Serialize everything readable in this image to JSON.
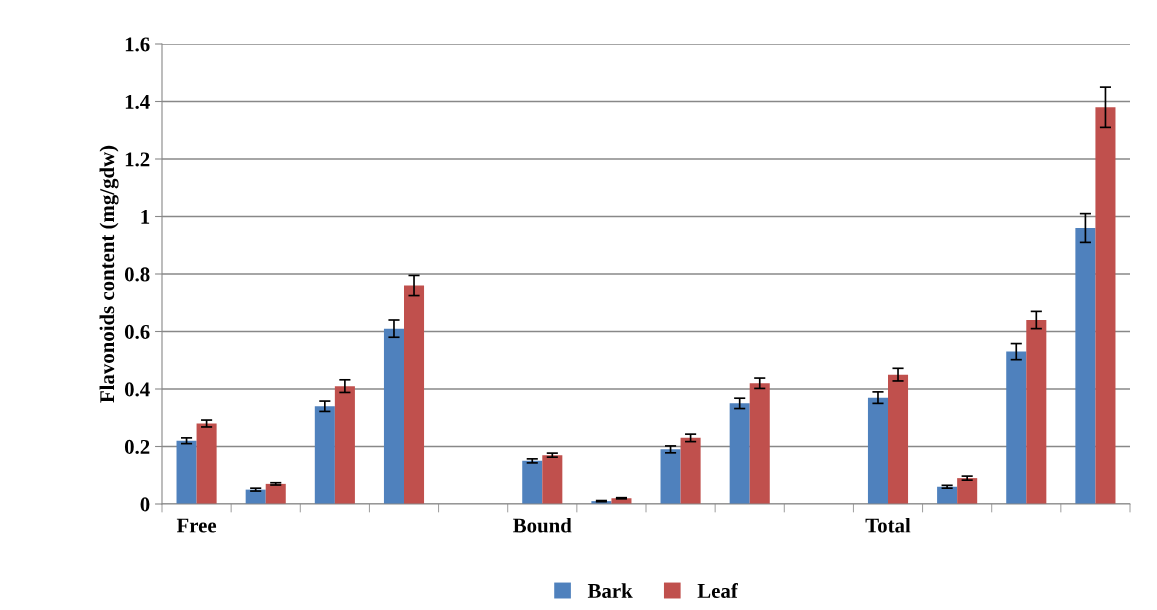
{
  "chart_data": {
    "type": "bar",
    "ylabel": "Flavonoids content (mg/gdw)",
    "categories": [
      "Free",
      null,
      null,
      null,
      null,
      "Bound",
      null,
      null,
      null,
      null,
      "Total",
      null,
      null,
      null
    ],
    "series": [
      {
        "name": "Bark",
        "color": "#4f81bd",
        "values": [
          0.22,
          0.05,
          0.34,
          0.61,
          null,
          0.15,
          0.01,
          0.19,
          0.35,
          null,
          0.37,
          0.06,
          0.53,
          0.96
        ],
        "errors": [
          0.01,
          0.005,
          0.018,
          0.03,
          null,
          0.007,
          0.002,
          0.012,
          0.018,
          null,
          0.02,
          0.005,
          0.028,
          0.05
        ]
      },
      {
        "name": "Leaf",
        "color": "#c0504d",
        "values": [
          0.28,
          0.07,
          0.41,
          0.76,
          null,
          0.17,
          0.02,
          0.23,
          0.42,
          null,
          0.45,
          0.09,
          0.64,
          1.38
        ],
        "errors": [
          0.012,
          0.004,
          0.022,
          0.035,
          null,
          0.007,
          0.002,
          0.013,
          0.018,
          null,
          0.022,
          0.007,
          0.03,
          0.07
        ]
      }
    ],
    "ylim": [
      0,
      1.6
    ],
    "yticks": [
      0,
      0.2,
      0.4,
      0.6,
      0.8,
      1,
      1.2,
      1.4,
      1.6
    ],
    "grid": "y",
    "legend": "bottom"
  }
}
